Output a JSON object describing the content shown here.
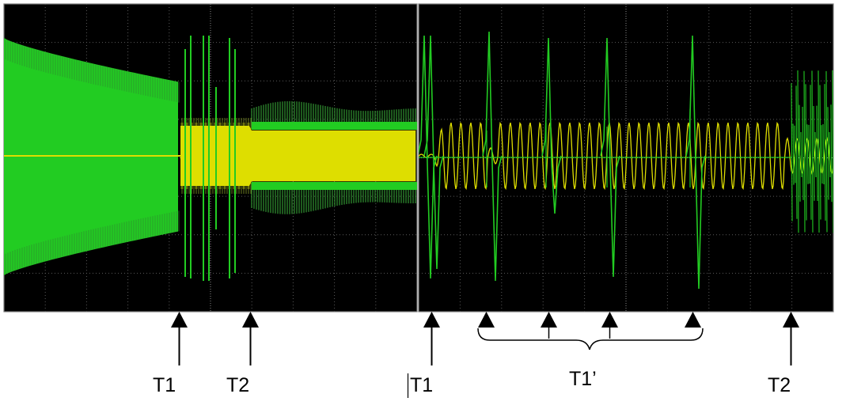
{
  "figure": {
    "colors": {
      "screen_background": "#000000",
      "trace_green": "#22cc22",
      "trace_yellow": "#dede00",
      "annotation": "#000000"
    },
    "left_panel": {
      "markers": [
        {
          "label": "T1"
        },
        {
          "label": "T2"
        }
      ]
    },
    "right_panel": {
      "markers": [
        {
          "label": "T1"
        },
        {
          "label": "T1’"
        },
        {
          "label": "T2"
        }
      ]
    }
  }
}
